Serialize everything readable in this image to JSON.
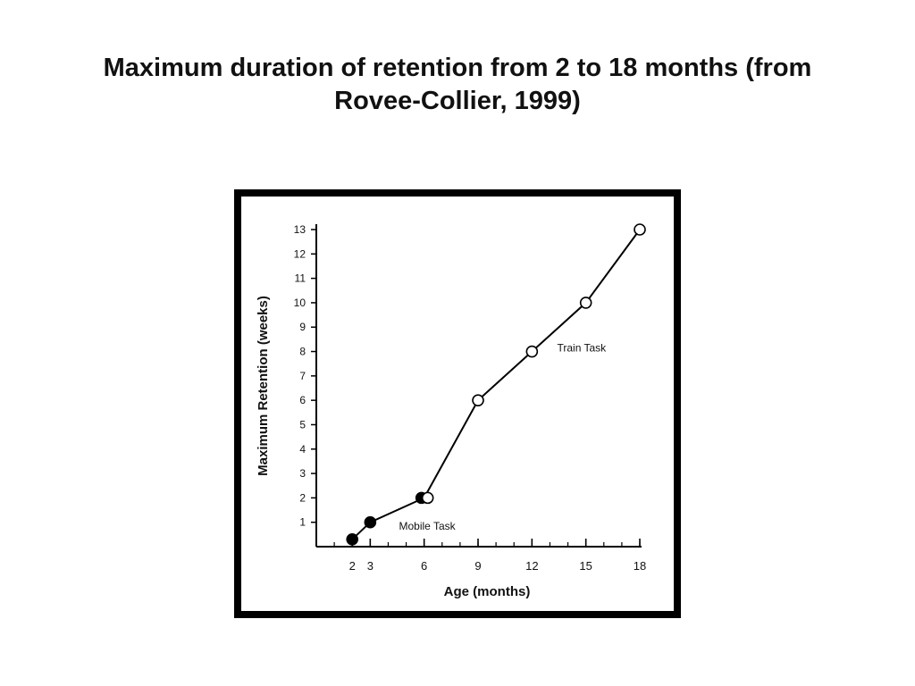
{
  "slide": {
    "title": "Maximum duration of retention from 2 to 18 months (from Rovee-Collier, 1999)"
  },
  "colors": {
    "frame": "#000000",
    "line": "#000000",
    "mobile_marker": "#000000",
    "train_marker": "#ffffff"
  },
  "chart_data": {
    "type": "line",
    "xlabel": "Age (months)",
    "ylabel": "Maximum Retention (weeks)",
    "xlim": [
      0,
      18
    ],
    "ylim": [
      0,
      13
    ],
    "x_ticks": [
      2,
      3,
      6,
      9,
      12,
      15,
      18
    ],
    "y_ticks": [
      1,
      2,
      3,
      4,
      5,
      6,
      7,
      8,
      9,
      10,
      11,
      12,
      13
    ],
    "grid": false,
    "series": [
      {
        "name": "Mobile Task",
        "marker": "filled-circle",
        "x": [
          2,
          3,
          6
        ],
        "y": [
          0.3,
          1,
          2
        ]
      },
      {
        "name": "Train Task",
        "marker": "open-circle",
        "x": [
          6,
          9,
          12,
          15,
          18
        ],
        "y": [
          2,
          6,
          8,
          10,
          13
        ]
      }
    ]
  }
}
